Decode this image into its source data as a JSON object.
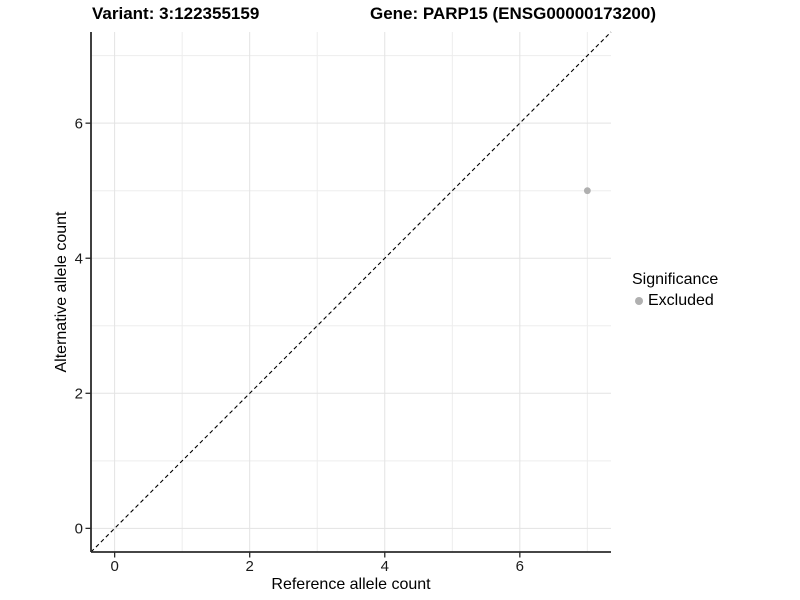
{
  "header": {
    "variant_title": "Variant: 3:122355159",
    "gene_title": "Gene: PARP15 (ENSG00000173200)"
  },
  "axes": {
    "x_label": "Reference allele count",
    "y_label": "Alternative allele count"
  },
  "legend": {
    "title": "Significance",
    "items": [
      {
        "label": "Excluded",
        "color": "#b0b0b0",
        "marker": "circle-icon"
      }
    ]
  },
  "colors": {
    "background": "#ffffff",
    "grid_major": "#e3e3e3",
    "grid_minor": "#ededed",
    "axis_line": "#2b2b2b",
    "tick_label": "#1a1a1a",
    "reference_line": "#000000",
    "excluded_point": "#b0b0b0"
  },
  "chart_data": {
    "type": "scatter",
    "title": "Variant: 3:122355159 | Gene: PARP15 (ENSG00000173200)",
    "xlabel": "Reference allele count",
    "ylabel": "Alternative allele count",
    "xlim": [
      -0.35,
      7.35
    ],
    "ylim": [
      -0.35,
      7.35
    ],
    "x_ticks": [
      0,
      2,
      4,
      6
    ],
    "y_ticks": [
      0,
      2,
      4,
      6
    ],
    "x_minor_ticks": [
      1,
      3,
      5,
      7
    ],
    "y_minor_ticks": [
      1,
      3,
      5,
      7
    ],
    "grid": "major+minor",
    "legend_position": "right",
    "series": [
      {
        "name": "Excluded",
        "color": "#b0b0b0",
        "marker": "circle",
        "point_radius": 3.4,
        "points": [
          {
            "x": 7,
            "y": 5
          }
        ]
      }
    ],
    "reference_line": {
      "type": "identity",
      "style": "dashed",
      "color": "#000000",
      "from": [
        -0.35,
        -0.35
      ],
      "to": [
        7.35,
        7.35
      ]
    }
  }
}
